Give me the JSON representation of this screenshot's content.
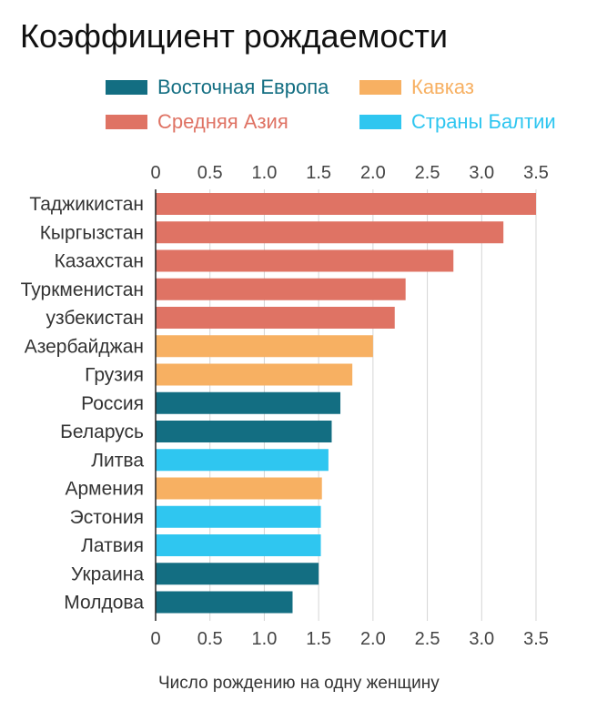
{
  "chart_data": {
    "type": "bar",
    "orientation": "horizontal",
    "title": "Коэффициент рождаемости",
    "xlabel": "Число рождению на одну женщину",
    "ylabel": "",
    "xlim": [
      0,
      3.5
    ],
    "ticks": [
      "0",
      "0.5",
      "1.0",
      "1.5",
      "2.0",
      "2.5",
      "3.0",
      "3.5"
    ],
    "tick_values": [
      0,
      0.5,
      1.0,
      1.5,
      2.0,
      2.5,
      3.0,
      3.5
    ],
    "grid": true,
    "legend_position": "top",
    "groups": [
      {
        "name": "Восточная Европа",
        "color": "#136e82"
      },
      {
        "name": "Кавказ",
        "color": "#f7b062"
      },
      {
        "name": "Средняя Азия",
        "color": "#df7364"
      },
      {
        "name": "Страны Балтии",
        "color": "#2fc6f0"
      }
    ],
    "categories": [
      "Таджикистан",
      "Кыргызстан",
      "Казахстан",
      "Туркменистан",
      "узбекистан",
      "Азербайджан",
      "Грузия",
      "Россия",
      "Беларусь",
      "Литва",
      "Армения",
      "Эстония",
      "Латвия",
      "Украина",
      "Молдова"
    ],
    "values": [
      3.5,
      3.2,
      2.74,
      2.3,
      2.2,
      2.0,
      1.81,
      1.7,
      1.62,
      1.59,
      1.53,
      1.52,
      1.52,
      1.5,
      1.26
    ],
    "bar_groups": [
      "Средняя Азия",
      "Средняя Азия",
      "Средняя Азия",
      "Средняя Азия",
      "Средняя Азия",
      "Кавказ",
      "Кавказ",
      "Восточная Европа",
      "Восточная Европа",
      "Страны Балтии",
      "Кавказ",
      "Страны Балтии",
      "Страны Балтии",
      "Восточная Европа",
      "Восточная Европа"
    ]
  }
}
